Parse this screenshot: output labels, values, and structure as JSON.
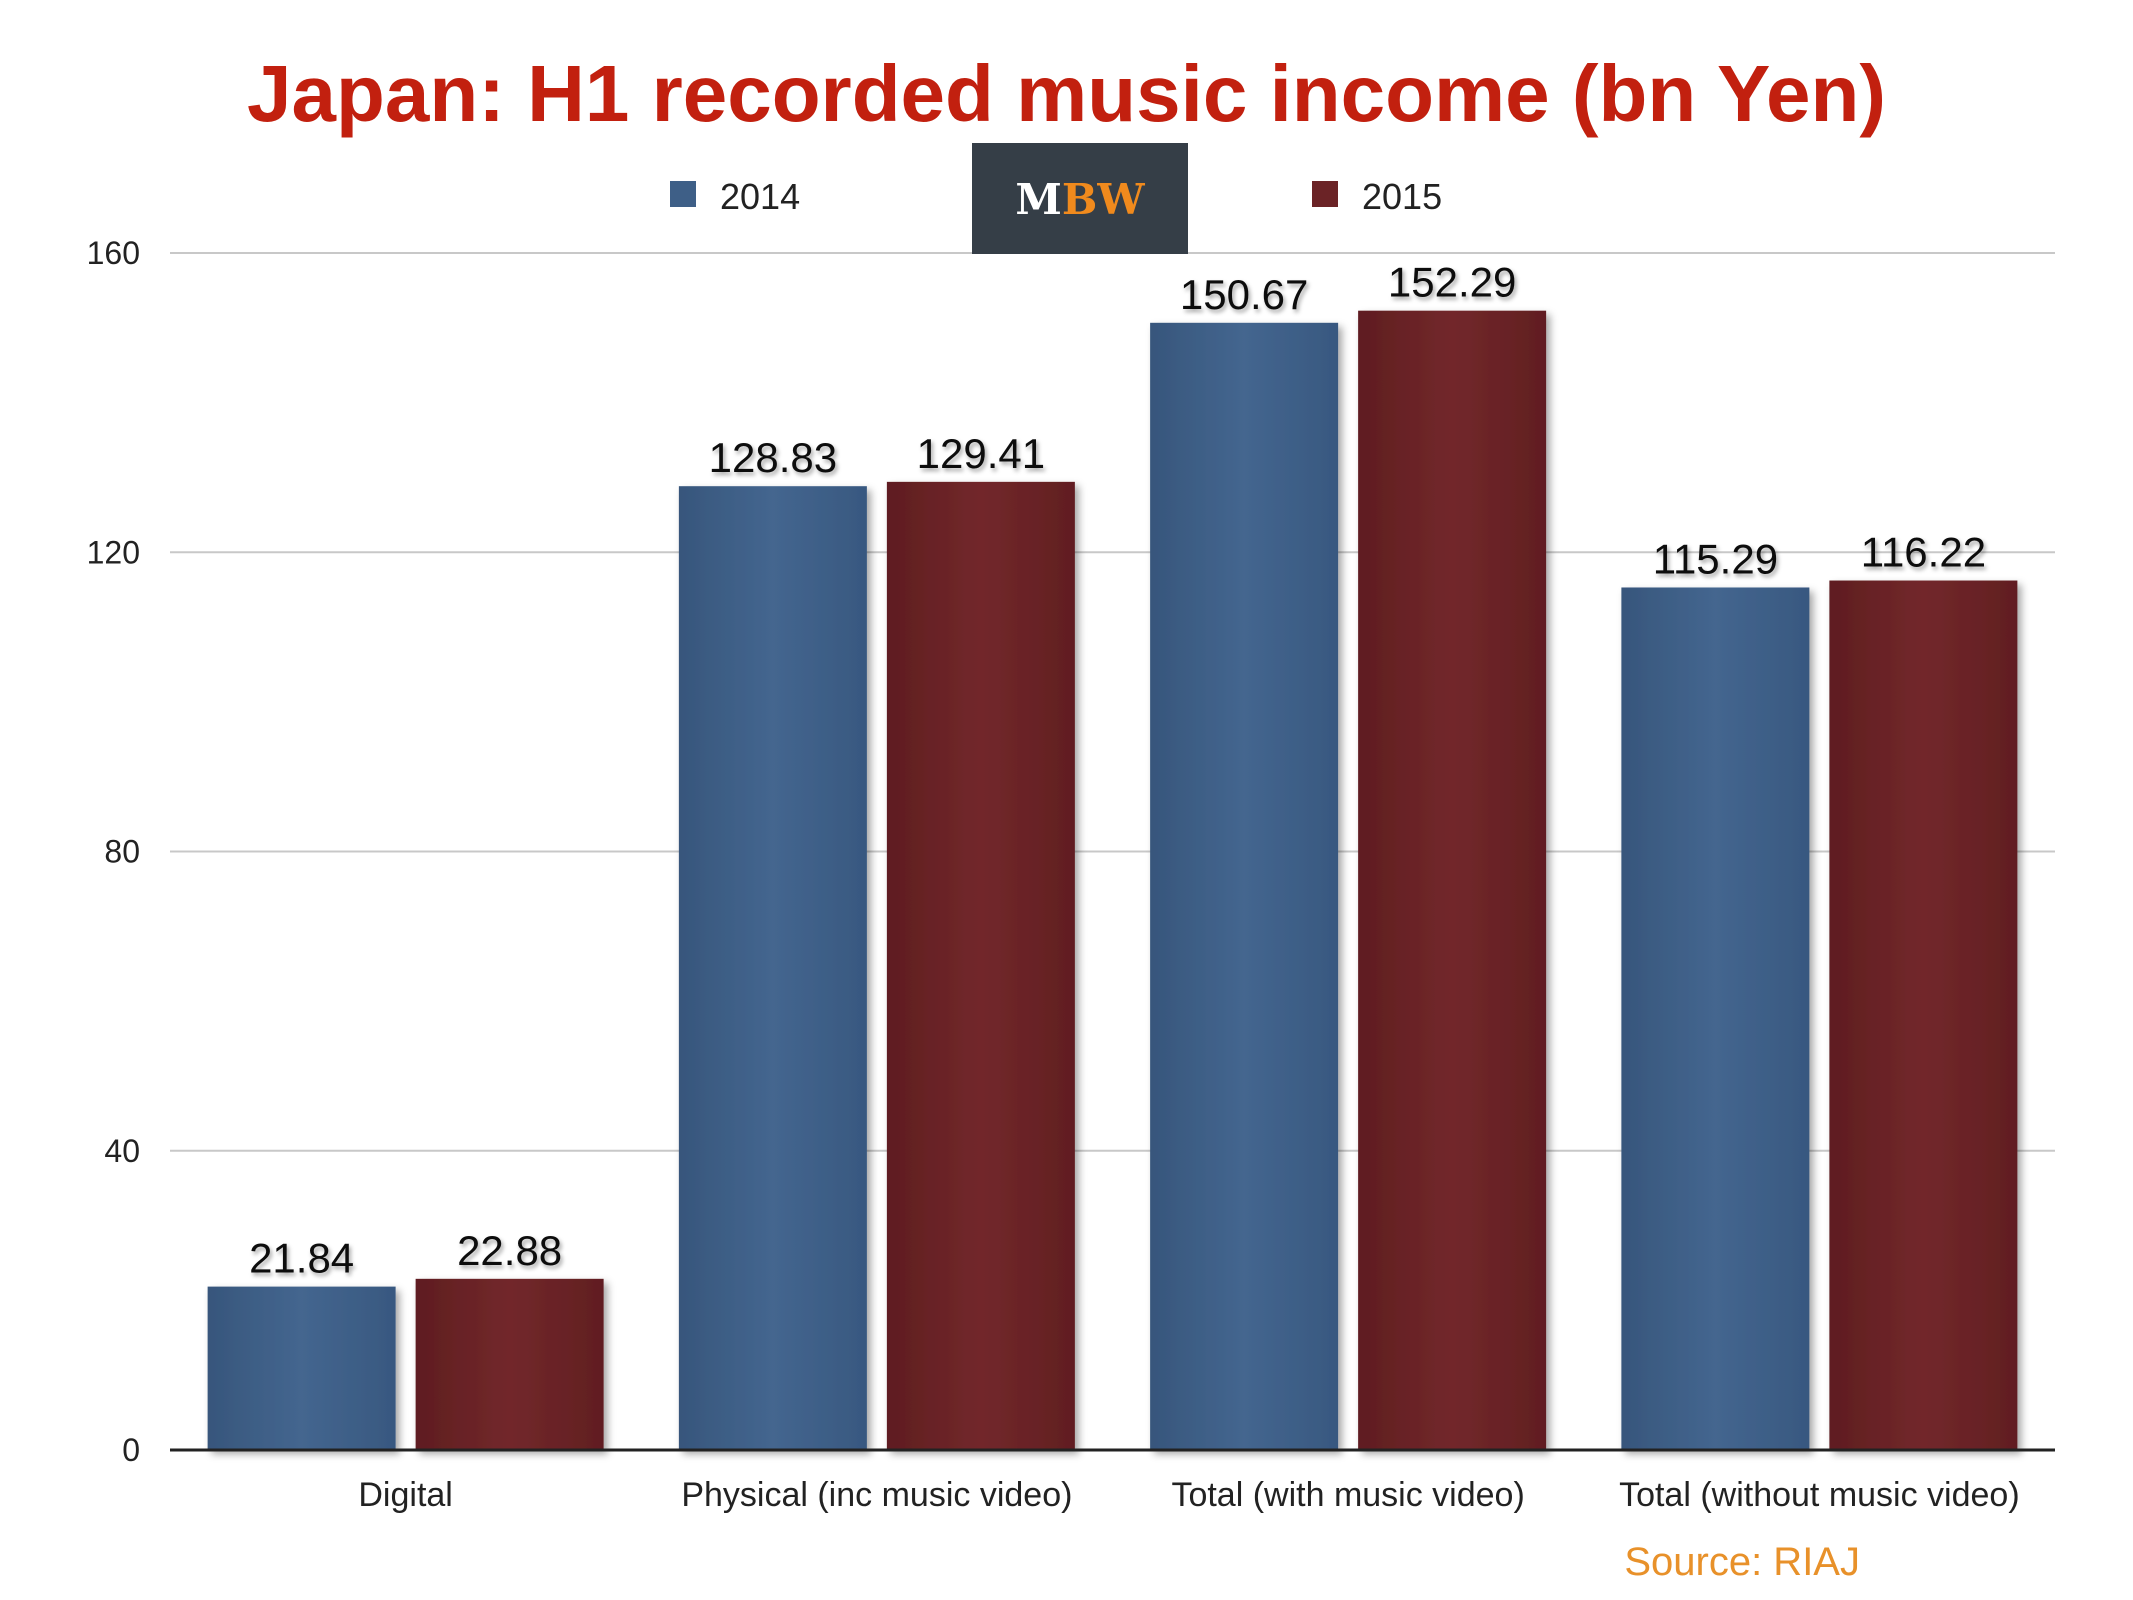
{
  "logo": {
    "text_left": "M",
    "text_right": "BW",
    "bg": "#353e47",
    "left_color": "#ffffff",
    "right_color": "#f08a1d"
  },
  "source": "Source: RIAJ",
  "chart_data": {
    "type": "bar",
    "title": "Japan: H1 recorded music income (bn Yen)",
    "xlabel": "",
    "ylabel": "",
    "ylim": [
      0,
      160
    ],
    "yticks": [
      0,
      40,
      80,
      120,
      160
    ],
    "grid": true,
    "legend_position": "top-center",
    "categories": [
      "Digital",
      "Physical (inc music video)",
      "Total (with music video)",
      "Total (without music video)"
    ],
    "series": [
      {
        "name": "2014",
        "color": "#3e5f87",
        "values": [
          21.84,
          128.83,
          150.67,
          115.29
        ],
        "labels": [
          "21.84",
          "128.83",
          "150.67",
          "115.29"
        ]
      },
      {
        "name": "2015",
        "color": "#6b2326",
        "values": [
          22.88,
          129.41,
          152.29,
          116.22
        ],
        "labels": [
          "22.88",
          "129.41",
          "152.29",
          "116.22"
        ]
      }
    ]
  }
}
